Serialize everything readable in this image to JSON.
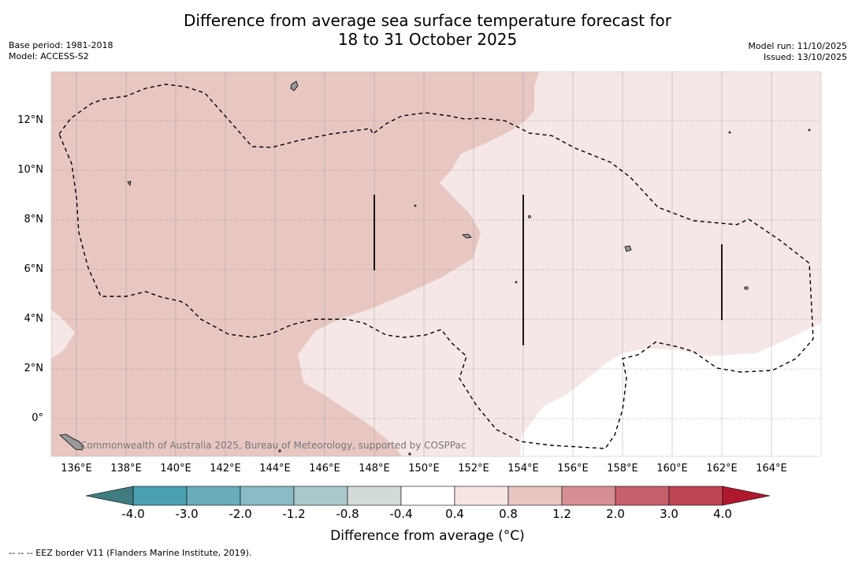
{
  "title_line1": "Difference from average sea surface temperature forecast for",
  "title_line2": "18 to 31 October 2025",
  "base_period": "Base period: 1981-2018",
  "model": "Model: ACCESS-S2",
  "model_run": "Model run: 11/10/2025",
  "issued": "Issued: 13/10/2025",
  "lat_labels": [
    "12°N",
    "10°N",
    "8°N",
    "6°N",
    "4°N",
    "2°N",
    "0°"
  ],
  "lon_labels": [
    "136°E",
    "138°E",
    "140°E",
    "142°E",
    "144°E",
    "146°E",
    "148°E",
    "150°E",
    "152°E",
    "154°E",
    "156°E",
    "158°E",
    "160°E",
    "162°E",
    "164°E"
  ],
  "copyright": "Commonwealth of Australia 2025, Bureau of Meteorology, supported by COSPPac",
  "colorbar": {
    "title": "Difference from average (°C)",
    "ticks": [
      "-4.0",
      "-3.0",
      "-2.0",
      "-1.2",
      "-0.8",
      "-0.4",
      "0.4",
      "0.8",
      "1.2",
      "2.0",
      "3.0",
      "4.0"
    ],
    "colors": [
      "#4aa0b1",
      "#6aacbb",
      "#8abac4",
      "#a9c8cc",
      "#d2dbda",
      "#ffffff",
      "#f5e6e4",
      "#e7c6c1",
      "#d68f95",
      "#c6606c",
      "#be4553"
    ],
    "low_extend_color": "#3f7c81",
    "high_extend_color": "#b0182e"
  },
  "map_fill_colors": {
    "warm_0_8_1_2": "#e8c7c3",
    "warm_0_4_0_8": "#f5e7e5",
    "neutral": "#ffffff"
  },
  "footnote": "--  --  -- EEZ border V11 (Flanders Marine Institute, 2019)."
}
